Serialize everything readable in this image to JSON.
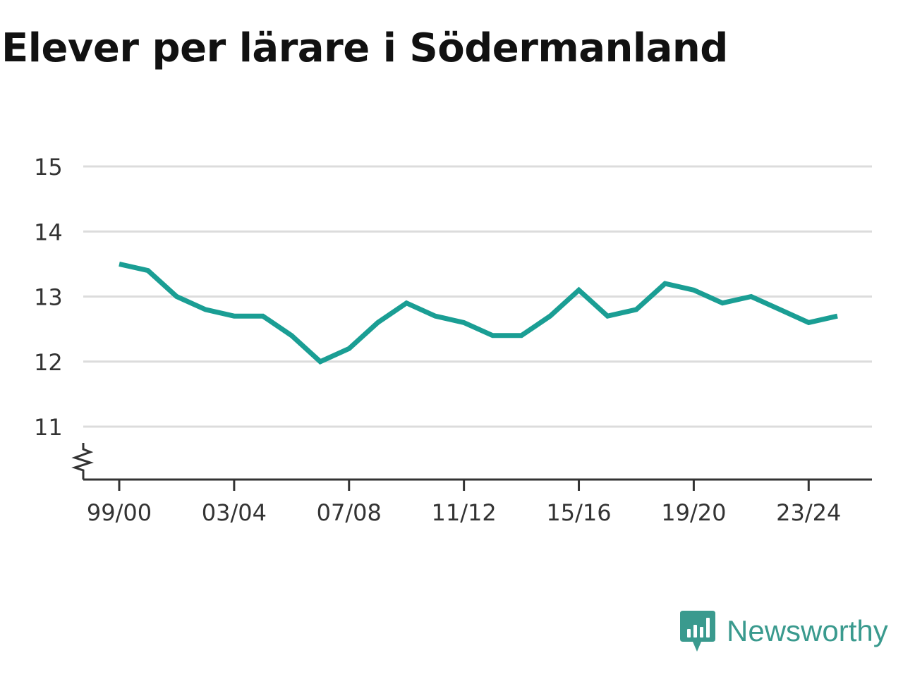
{
  "title": "Elever per lärare i Södermanland",
  "brand": {
    "name": "Newsworthy",
    "color": "#3a9a8e",
    "icon": "newsworthy-logo-icon"
  },
  "chart_data": {
    "type": "line",
    "title": "Elever per lärare i Södermanland",
    "xlabel": "",
    "ylabel": "",
    "x": [
      "99/00",
      "00/01",
      "01/02",
      "02/03",
      "03/04",
      "04/05",
      "05/06",
      "06/07",
      "07/08",
      "08/09",
      "09/10",
      "10/11",
      "11/12",
      "12/13",
      "13/14",
      "14/15",
      "15/16",
      "16/17",
      "17/18",
      "18/19",
      "19/20",
      "20/21",
      "21/22",
      "22/23",
      "23/24",
      "24/25"
    ],
    "x_tick_labels": [
      "99/00",
      "03/04",
      "07/08",
      "11/12",
      "15/16",
      "19/20",
      "23/24"
    ],
    "y_ticks": [
      11,
      12,
      13,
      14,
      15
    ],
    "ylim": [
      10.2,
      15
    ],
    "y_axis_break": true,
    "grid": true,
    "series": [
      {
        "color": "#1a9e94",
        "values": [
          13.5,
          13.4,
          13.0,
          12.8,
          12.7,
          12.7,
          12.4,
          12.0,
          12.2,
          12.6,
          12.9,
          12.7,
          12.6,
          12.4,
          12.4,
          12.7,
          13.1,
          12.7,
          12.8,
          13.2,
          13.1,
          12.9,
          13.0,
          12.8,
          12.6,
          12.7
        ]
      }
    ]
  }
}
